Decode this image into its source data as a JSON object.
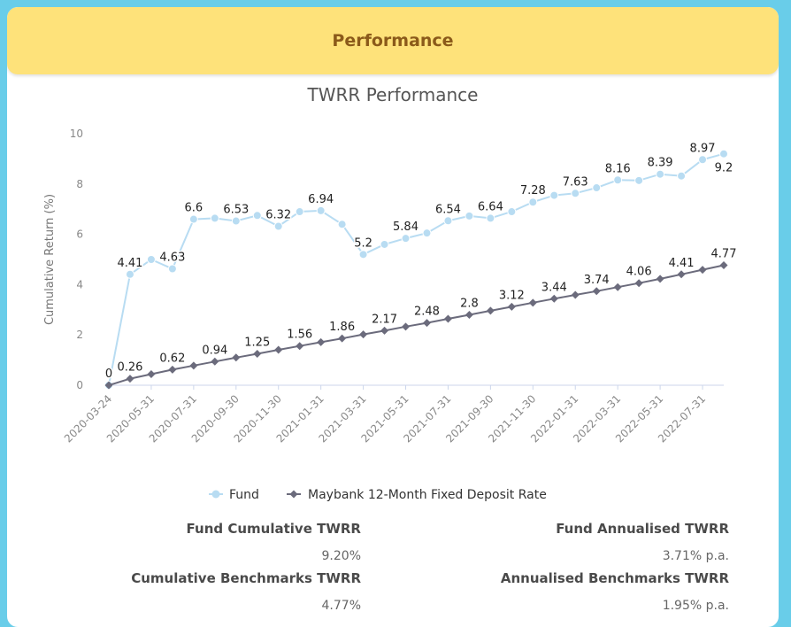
{
  "header": {
    "title": "Performance"
  },
  "chart_data": {
    "type": "line",
    "title": "TWRR Performance",
    "xlabel": "",
    "ylabel": "Cumulative Return (%)",
    "ylim": [
      0,
      10
    ],
    "yticks": [
      0,
      2,
      4,
      6,
      8,
      10
    ],
    "grid": false,
    "legend_position": "bottom",
    "x_tick_labels": [
      "2020-03-24",
      "2020-05-31",
      "2020-07-31",
      "2020-09-30",
      "2020-11-30",
      "2021-01-31",
      "2021-03-31",
      "2021-05-31",
      "2021-07-31",
      "2021-09-30",
      "2021-11-30",
      "2022-01-31",
      "2022-03-31",
      "2022-05-31",
      "2022-07-31"
    ],
    "series": [
      {
        "name": "Fund",
        "color": "#b8dcf2",
        "marker": "circle",
        "x": [
          "2020-03-24",
          "2020-04-30",
          "2020-05-31",
          "2020-06-30",
          "2020-07-31",
          "2020-08-31",
          "2020-09-30",
          "2020-10-31",
          "2020-11-30",
          "2020-12-31",
          "2021-01-31",
          "2021-02-28",
          "2021-03-31",
          "2021-04-30",
          "2021-05-31",
          "2021-06-30",
          "2021-07-31",
          "2021-08-31",
          "2021-09-30",
          "2021-10-31",
          "2021-11-30",
          "2021-12-31",
          "2022-01-31",
          "2022-02-28",
          "2022-03-31",
          "2022-04-30",
          "2022-05-31",
          "2022-06-30",
          "2022-07-31",
          "2022-08-31"
        ],
        "values": [
          0,
          4.41,
          5.0,
          4.63,
          6.6,
          6.64,
          6.53,
          6.75,
          6.32,
          6.9,
          6.94,
          6.4,
          5.2,
          5.6,
          5.84,
          6.05,
          6.54,
          6.73,
          6.64,
          6.9,
          7.28,
          7.55,
          7.63,
          7.85,
          8.16,
          8.14,
          8.39,
          8.32,
          8.97,
          9.2
        ],
        "labels": [
          "0",
          "4.41",
          "",
          "4.63",
          "6.6",
          "",
          "6.53",
          "",
          "6.32",
          "",
          "6.94",
          "",
          "5.2",
          "",
          "5.84",
          "",
          "6.54",
          "",
          "6.64",
          "",
          "7.28",
          "",
          "7.63",
          "",
          "8.16",
          "",
          "8.39",
          "",
          "8.97",
          "9.2"
        ]
      },
      {
        "name": "Maybank 12-Month Fixed Deposit Rate",
        "color": "#6b6b7c",
        "marker": "diamond",
        "x": [
          "2020-03-24",
          "2020-04-30",
          "2020-05-31",
          "2020-06-30",
          "2020-07-31",
          "2020-08-31",
          "2020-09-30",
          "2020-10-31",
          "2020-11-30",
          "2020-12-31",
          "2021-01-31",
          "2021-02-28",
          "2021-03-31",
          "2021-04-30",
          "2021-05-31",
          "2021-06-30",
          "2021-07-31",
          "2021-08-31",
          "2021-09-30",
          "2021-10-31",
          "2021-11-30",
          "2021-12-31",
          "2022-01-31",
          "2022-02-28",
          "2022-03-31",
          "2022-04-30",
          "2022-05-31",
          "2022-06-30",
          "2022-07-31",
          "2022-08-31"
        ],
        "values": [
          0,
          0.26,
          0.44,
          0.62,
          0.78,
          0.94,
          1.1,
          1.25,
          1.41,
          1.56,
          1.71,
          1.86,
          2.02,
          2.17,
          2.33,
          2.48,
          2.64,
          2.8,
          2.96,
          3.12,
          3.28,
          3.44,
          3.59,
          3.74,
          3.9,
          4.06,
          4.23,
          4.41,
          4.59,
          4.77
        ],
        "labels": [
          "",
          "0.26",
          "",
          "0.62",
          "",
          "0.94",
          "",
          "1.25",
          "",
          "1.56",
          "",
          "1.86",
          "",
          "2.17",
          "",
          "2.48",
          "",
          "2.8",
          "",
          "3.12",
          "",
          "3.44",
          "",
          "3.74",
          "",
          "4.06",
          "",
          "4.41",
          "",
          "4.77"
        ]
      }
    ]
  },
  "stats": {
    "fund_cumulative_label": "Fund Cumulative TWRR",
    "fund_cumulative_value": "9.20%",
    "fund_annualised_label": "Fund Annualised TWRR",
    "fund_annualised_value": "3.71% p.a.",
    "bench_cumulative_label": "Cumulative Benchmarks TWRR",
    "bench_cumulative_value": "4.77%",
    "bench_annualised_label": "Annualised Benchmarks TWRR",
    "bench_annualised_value": "1.95% p.a."
  }
}
